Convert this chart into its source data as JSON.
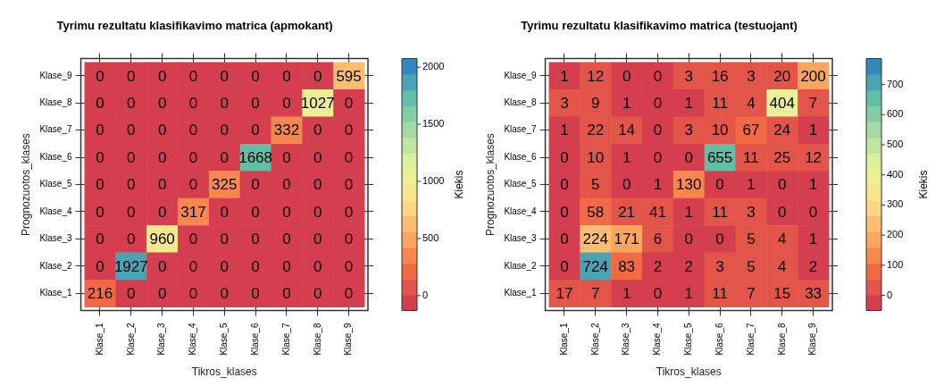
{
  "chart_data": [
    {
      "type": "heatmap",
      "title": "Tyrimu rezultatu klasifikavimo matrica (apmokant)",
      "xlabel": "Tikros_klases",
      "ylabel": "Prognozuotos_klases",
      "clabel": "Kiekis",
      "data_labels": true,
      "categories": [
        "Klase_1",
        "Klase_2",
        "Klase_3",
        "Klase_4",
        "Klase_5",
        "Klase_6",
        "Klase_7",
        "Klase_8",
        "Klase_9"
      ],
      "y_categories": [
        "Klase_9",
        "Klase_8",
        "Klase_7",
        "Klase_6",
        "Klase_5",
        "Klase_4",
        "Klase_3",
        "Klase_2",
        "Klase_1"
      ],
      "cells": [
        [
          0,
          0,
          0,
          0,
          0,
          0,
          0,
          0,
          595
        ],
        [
          0,
          0,
          0,
          0,
          0,
          0,
          0,
          1027,
          0
        ],
        [
          0,
          0,
          0,
          0,
          0,
          0,
          332,
          0,
          0
        ],
        [
          0,
          0,
          0,
          0,
          0,
          1668,
          0,
          0,
          0
        ],
        [
          0,
          0,
          0,
          0,
          325,
          0,
          0,
          0,
          0
        ],
        [
          0,
          0,
          0,
          317,
          0,
          0,
          0,
          0,
          0
        ],
        [
          0,
          0,
          960,
          0,
          0,
          0,
          0,
          0,
          0
        ],
        [
          0,
          1927,
          0,
          0,
          0,
          0,
          0,
          0,
          0
        ],
        [
          216,
          0,
          0,
          0,
          0,
          0,
          0,
          0,
          0
        ]
      ],
      "clim": [
        -130,
        2075
      ],
      "cticks": [
        0,
        500,
        1000,
        1500,
        2000
      ]
    },
    {
      "type": "heatmap",
      "title": "Tyrimu rezultatu klasifikavimo matrica (testuojant)",
      "xlabel": "Tikros_klases",
      "ylabel": "Prognozuotos_klases",
      "clabel": "Kiekis",
      "data_labels": true,
      "categories": [
        "Klase_1",
        "Klase_2",
        "Klase_3",
        "Klase_4",
        "Klase_5",
        "Klase_6",
        "Klase_7",
        "Klase_8",
        "Klase_9"
      ],
      "y_categories": [
        "Klase_9",
        "Klase_8",
        "Klase_7",
        "Klase_6",
        "Klase_5",
        "Klase_4",
        "Klase_3",
        "Klase_2",
        "Klase_1"
      ],
      "cells": [
        [
          1,
          12,
          0,
          0,
          3,
          16,
          3,
          20,
          200
        ],
        [
          3,
          9,
          1,
          0,
          1,
          11,
          4,
          404,
          7
        ],
        [
          1,
          22,
          14,
          0,
          3,
          10,
          67,
          24,
          1
        ],
        [
          0,
          10,
          1,
          0,
          0,
          655,
          11,
          25,
          12
        ],
        [
          0,
          5,
          0,
          1,
          130,
          0,
          1,
          0,
          1
        ],
        [
          0,
          58,
          21,
          41,
          1,
          11,
          3,
          0,
          0
        ],
        [
          0,
          224,
          171,
          6,
          0,
          0,
          5,
          4,
          1
        ],
        [
          0,
          724,
          83,
          2,
          2,
          3,
          5,
          4,
          2
        ],
        [
          17,
          7,
          1,
          0,
          1,
          11,
          7,
          15,
          33
        ]
      ],
      "clim": [
        -50,
        786
      ],
      "cticks": [
        0,
        100,
        200,
        300,
        400,
        500,
        600,
        700
      ]
    }
  ]
}
